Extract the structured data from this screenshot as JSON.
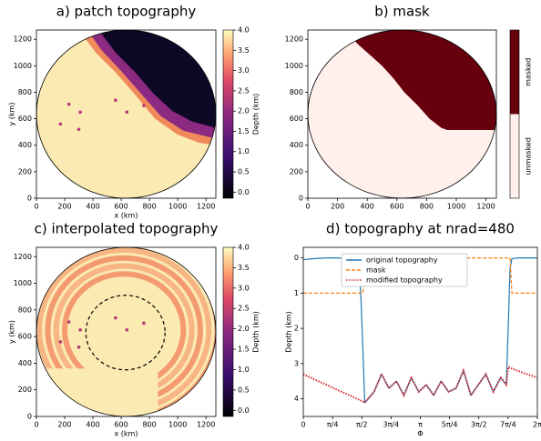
{
  "chart_data": [
    {
      "type": "image",
      "title": "a) patch topography",
      "xlabel": "x (km)",
      "ylabel": "y (km)",
      "xlim": [
        0,
        1270
      ],
      "ylim": [
        0,
        1270
      ],
      "xticks": [
        0,
        200,
        400,
        600,
        800,
        1000,
        1200
      ],
      "yticks": [
        0,
        200,
        400,
        600,
        800,
        1000,
        1200
      ],
      "colorbar": {
        "label": "Depth (km)",
        "lim": [
          -0.15,
          4.0
        ],
        "ticks": [
          {
            "value": 0,
            "label": "0.0"
          },
          {
            "value": 0.5,
            "label": "0.5"
          },
          {
            "value": 1,
            "label": "1.0"
          },
          {
            "value": 1.5,
            "label": "1.5"
          },
          {
            "value": 2,
            "label": "2.0"
          },
          {
            "value": 2.5,
            "label": "2.5"
          },
          {
            "value": 3,
            "label": "3.0"
          },
          {
            "value": 3.5,
            "label": "3.5"
          },
          {
            "value": 4,
            "label": "4.0"
          }
        ]
      }
    },
    {
      "type": "image",
      "title": "b) mask",
      "xlim": [
        0,
        1270
      ],
      "ylim": [
        0,
        1270
      ],
      "xticks": [
        0,
        200,
        400,
        600,
        800,
        1000,
        1200
      ],
      "yticks": [
        0,
        200,
        400,
        600,
        800,
        1000,
        1200
      ],
      "colorbar": {
        "labels": [
          "masked",
          "unmasked"
        ],
        "colors": [
          "#67000d",
          "#fff0eb"
        ]
      }
    },
    {
      "type": "image",
      "title": "c) interpolated topography",
      "xlabel": "x (km)",
      "ylabel": "y (km)",
      "xlim": [
        0,
        1270
      ],
      "ylim": [
        0,
        1270
      ],
      "xticks": [
        0,
        200,
        400,
        600,
        800,
        1000,
        1200
      ],
      "yticks": [
        0,
        200,
        400,
        600,
        800,
        1000,
        1200
      ],
      "colorbar": {
        "label": "Depth (km)",
        "lim": [
          -0.15,
          4.0
        ],
        "ticks": [
          {
            "value": 0,
            "label": "0.0"
          },
          {
            "value": 0.5,
            "label": "0.5"
          },
          {
            "value": 1,
            "label": "1.0"
          },
          {
            "value": 1.5,
            "label": "1.5"
          },
          {
            "value": 2,
            "label": "2.0"
          },
          {
            "value": 2.5,
            "label": "2.5"
          },
          {
            "value": 3,
            "label": "3.0"
          },
          {
            "value": 3.5,
            "label": "3.5"
          },
          {
            "value": 4,
            "label": "4.0"
          }
        ]
      }
    },
    {
      "type": "line",
      "title": "d) topography at nrad=480",
      "xlabel": "Φ",
      "ylabel": "Depth (km)",
      "xlim": [
        0,
        6.2832
      ],
      "ylim": [
        -0.3,
        4.5
      ],
      "y_inverted": true,
      "xticks": [
        0,
        {
          "value": 0.7854,
          "label": "π/4"
        },
        {
          "value": 1.5708,
          "label": "π/2"
        },
        {
          "value": 2.3562,
          "label": "3π/4"
        },
        {
          "value": 3.1416,
          "label": "π"
        },
        {
          "value": 3.927,
          "label": "5π/4"
        },
        {
          "value": 4.7124,
          "label": "3π/2"
        },
        {
          "value": 5.4978,
          "label": "7π/4"
        },
        {
          "value": 6.2832,
          "label": "2π"
        }
      ],
      "yticks": [
        0,
        1,
        2,
        3,
        4
      ],
      "x": [
        0,
        0.3,
        0.6,
        0.9,
        1.2,
        1.4,
        1.5,
        1.55,
        1.6,
        1.65,
        1.7,
        1.9,
        2.1,
        2.3,
        2.5,
        2.7,
        2.9,
        3.1,
        3.3,
        3.5,
        3.7,
        3.9,
        4.1,
        4.3,
        4.5,
        4.7,
        4.9,
        5.1,
        5.3,
        5.45,
        5.5,
        5.55,
        5.6,
        5.8,
        6.0,
        6.2832
      ],
      "series": [
        {
          "name": "original topography",
          "color": "#1f77b4",
          "linestyle": "solid",
          "values": [
            0.05,
            0.02,
            0,
            0,
            0.02,
            0.05,
            0.3,
            1.2,
            2.6,
            4.1,
            4.05,
            3.8,
            3.3,
            3.7,
            3.5,
            3.9,
            3.4,
            3.8,
            3.6,
            3.9,
            3.5,
            3.8,
            3.7,
            3.2,
            3.9,
            3.6,
            3.3,
            3.8,
            3.4,
            3.6,
            2.0,
            0.3,
            0.02,
            0,
            0,
            0
          ]
        },
        {
          "name": "mask",
          "color": "#ff7f0e",
          "linestyle": "dashed",
          "values": [
            1,
            1,
            1,
            1,
            1,
            1,
            1,
            1,
            1,
            0,
            0,
            0,
            0,
            0,
            0,
            0,
            0,
            0,
            0,
            0,
            0,
            0,
            0,
            0,
            0,
            0,
            0,
            0,
            0,
            0,
            0,
            0,
            1,
            1,
            1,
            1
          ]
        },
        {
          "name": "modified topography",
          "color": "#d62728",
          "linestyle": "dotted",
          "values": [
            3.3,
            3.45,
            3.59,
            3.74,
            3.88,
            3.98,
            4.03,
            4.05,
            4.08,
            4.1,
            4.05,
            3.8,
            3.3,
            3.7,
            3.5,
            3.9,
            3.4,
            3.8,
            3.6,
            3.9,
            3.5,
            3.8,
            3.7,
            3.2,
            3.9,
            3.6,
            3.3,
            3.8,
            3.4,
            3.6,
            3.1,
            3.12,
            3.14,
            3.22,
            3.3,
            3.4
          ]
        }
      ]
    }
  ]
}
